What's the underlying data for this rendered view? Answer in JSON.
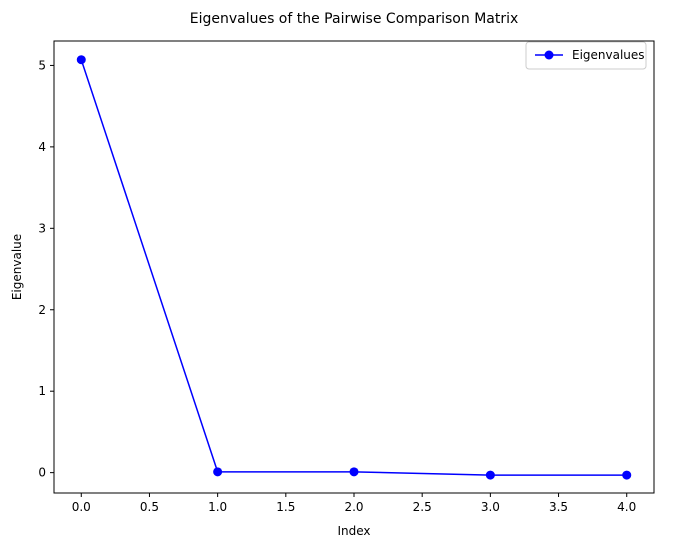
{
  "chart_data": {
    "type": "line",
    "title": "Eigenvalues of the Pairwise Comparison Matrix",
    "xlabel": "Index",
    "ylabel": "Eigenvalue",
    "x": [
      0,
      1,
      2,
      3,
      4
    ],
    "series": [
      {
        "name": "Eigenvalues",
        "values": [
          5.07,
          0.01,
          0.01,
          -0.03,
          -0.03
        ],
        "color": "#0000ff",
        "marker": "circle"
      }
    ],
    "xlim": [
      -0.2,
      4.2
    ],
    "ylim": [
      -0.25,
      5.3
    ],
    "xticks": [
      0.0,
      0.5,
      1.0,
      1.5,
      2.0,
      2.5,
      3.0,
      3.5,
      4.0
    ],
    "xtick_labels": [
      "0.0",
      "0.5",
      "1.0",
      "1.5",
      "2.0",
      "2.5",
      "3.0",
      "3.5",
      "4.0"
    ],
    "yticks": [
      0,
      1,
      2,
      3,
      4,
      5
    ],
    "ytick_labels": [
      "0",
      "1",
      "2",
      "3",
      "4",
      "5"
    ],
    "grid": false,
    "legend": "top-right"
  }
}
